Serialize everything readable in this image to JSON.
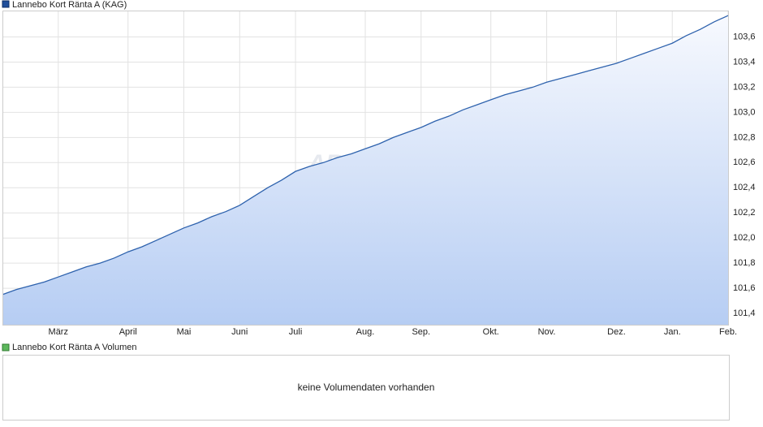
{
  "chart_data": {
    "type": "line",
    "title": "Lannebo Kort Ränta A (KAG)",
    "watermark": "ARIVA.DE",
    "color": "#2e62ad",
    "grid": true,
    "categories": [
      null,
      null,
      null,
      null,
      "März",
      null,
      null,
      null,
      null,
      "April",
      null,
      null,
      null,
      "Mai",
      null,
      null,
      null,
      "Juni",
      null,
      null,
      null,
      "Juli",
      null,
      null,
      null,
      null,
      "Aug.",
      null,
      null,
      null,
      "Sep.",
      null,
      null,
      null,
      null,
      "Okt.",
      null,
      null,
      null,
      "Nov.",
      null,
      null,
      null,
      null,
      "Dez.",
      null,
      null,
      null,
      "Jan.",
      null,
      null,
      null,
      "Feb."
    ],
    "values": [
      101.55,
      101.59,
      101.62,
      101.65,
      101.69,
      101.73,
      101.77,
      101.8,
      101.84,
      101.89,
      101.93,
      101.98,
      102.03,
      102.08,
      102.12,
      102.17,
      102.21,
      102.26,
      102.33,
      102.4,
      102.46,
      102.53,
      102.57,
      102.6,
      102.64,
      102.67,
      102.71,
      102.75,
      102.8,
      102.84,
      102.88,
      102.93,
      102.97,
      103.02,
      103.06,
      103.1,
      103.14,
      103.17,
      103.2,
      103.24,
      103.27,
      103.3,
      103.33,
      103.36,
      103.39,
      103.43,
      103.47,
      103.51,
      103.55,
      103.61,
      103.66,
      103.72,
      103.77
    ],
    "ylim": [
      101.31,
      103.81
    ],
    "yticks": [
      {
        "value": 101.4,
        "label": "101,4"
      },
      {
        "value": 101.6,
        "label": "101,6"
      },
      {
        "value": 101.8,
        "label": "101,8"
      },
      {
        "value": 102.0,
        "label": "102,0"
      },
      {
        "value": 102.2,
        "label": "102,2"
      },
      {
        "value": 102.4,
        "label": "102,4"
      },
      {
        "value": 102.6,
        "label": "102,6"
      },
      {
        "value": 102.8,
        "label": "102,8"
      },
      {
        "value": 103.0,
        "label": "103,0"
      },
      {
        "value": 103.2,
        "label": "103,2"
      },
      {
        "value": 103.4,
        "label": "103,4"
      },
      {
        "value": 103.6,
        "label": "103,6"
      }
    ]
  },
  "volume_panel": {
    "legend": "Lannebo Kort Ränta A Volumen",
    "message": "keine Volumendaten vorhanden"
  }
}
